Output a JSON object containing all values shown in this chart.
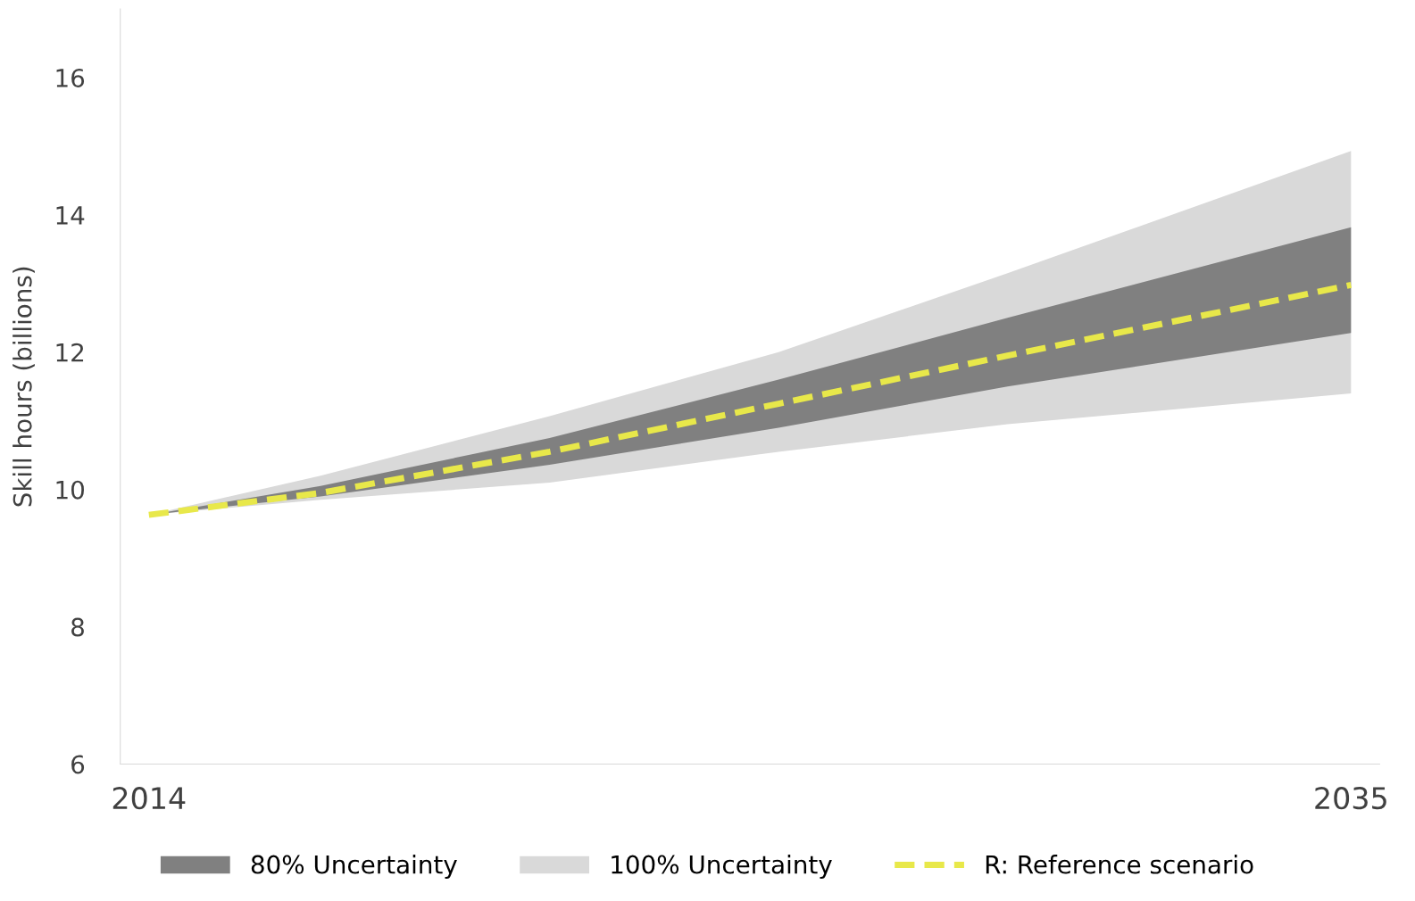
{
  "chart_data": {
    "type": "line",
    "ylabel": "Skill hours (billions)",
    "xlim": [
      2013.5,
      2035.5
    ],
    "xticks": [
      2014,
      2035
    ],
    "ylim": [
      6,
      17
    ],
    "yticks": [
      6,
      8,
      10,
      12,
      14,
      16
    ],
    "grid": false,
    "legend": "bottom",
    "series": [
      {
        "name": "100% Uncertainty",
        "type": "area",
        "color": "#d9d9d9",
        "x": [
          2014,
          2017,
          2021,
          2025,
          2029,
          2035
        ],
        "values": [
          null,
          null,
          null,
          null,
          null,
          null
        ],
        "lower": [
          9.63,
          9.85,
          10.1,
          10.55,
          10.95,
          11.4
        ],
        "upper": [
          9.63,
          10.2,
          11.07,
          12.0,
          13.15,
          14.93
        ]
      },
      {
        "name": "80% Uncertainty",
        "type": "area",
        "color": "#808080",
        "x": [
          2014,
          2017,
          2021,
          2025,
          2029,
          2035
        ],
        "values": [
          null,
          null,
          null,
          null,
          null,
          null
        ],
        "lower": [
          9.63,
          9.9,
          10.36,
          10.9,
          11.5,
          12.28
        ],
        "upper": [
          9.63,
          10.05,
          10.75,
          11.6,
          12.5,
          13.82
        ]
      },
      {
        "name": "R: Reference scenario",
        "type": "line",
        "color": "#e8e84a",
        "line_style": "dashed",
        "x": [
          2014,
          2017,
          2021,
          2025,
          2029,
          2035
        ],
        "values": [
          9.63,
          9.95,
          10.55,
          11.25,
          11.95,
          12.98
        ]
      }
    ]
  }
}
